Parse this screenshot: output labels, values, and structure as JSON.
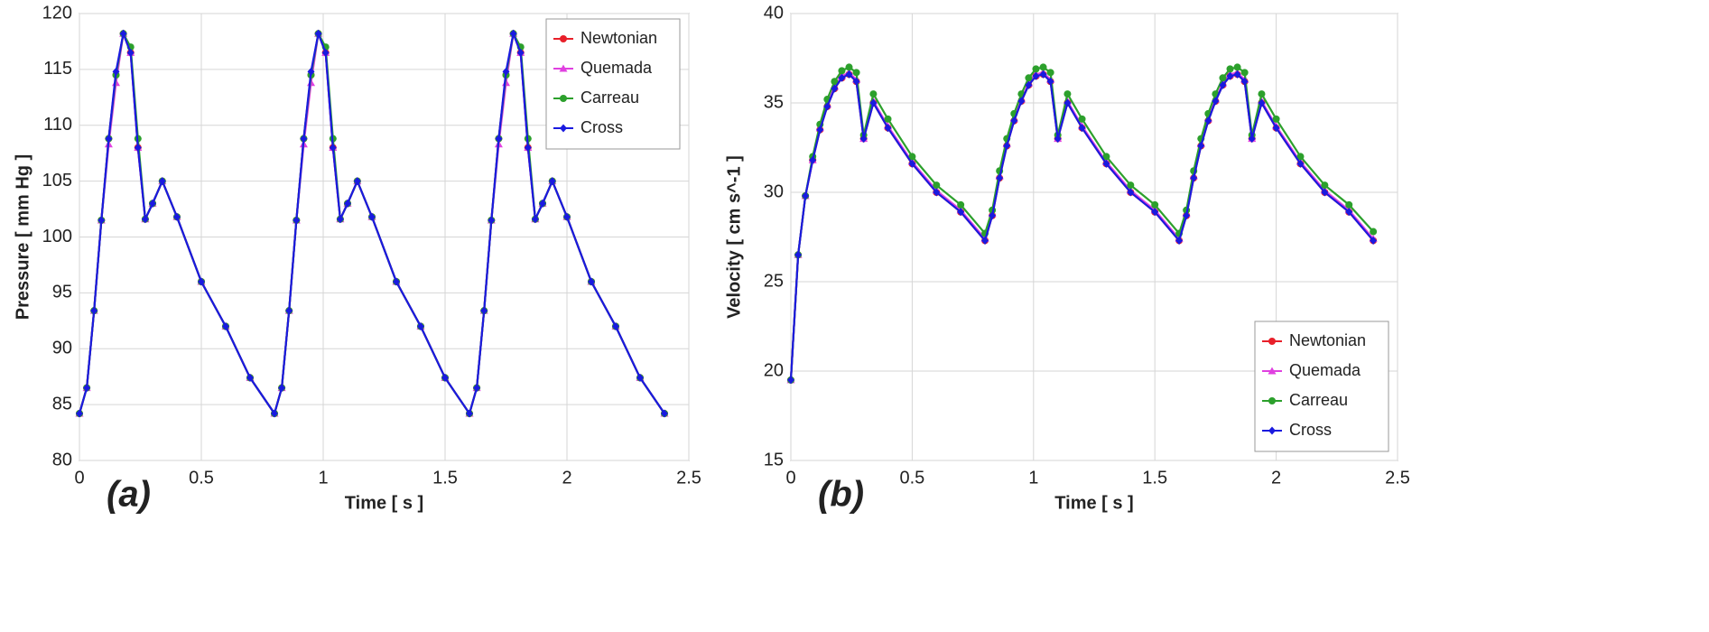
{
  "chart_data": [
    {
      "type": "line",
      "panel_label": "(a)",
      "xlabel": "Time [ s ]",
      "ylabel": "Pressure [ mm Hg ]",
      "xlim": [
        0,
        2.5
      ],
      "xticks": [
        0,
        0.5,
        1,
        1.5,
        2,
        2.5
      ],
      "ylim": [
        80,
        120
      ],
      "yticks": [
        80,
        85,
        90,
        95,
        100,
        105,
        110,
        115,
        120
      ],
      "grid": true,
      "legend": "upper right",
      "x": [
        0,
        0.03,
        0.06,
        0.09,
        0.12,
        0.15,
        0.18,
        0.21,
        0.24,
        0.27,
        0.3,
        0.34,
        0.4,
        0.5,
        0.6,
        0.7,
        0.8,
        0.83,
        0.86,
        0.89,
        0.92,
        0.95,
        0.98,
        1.01,
        1.04,
        1.07,
        1.1,
        1.14,
        1.2,
        1.3,
        1.4,
        1.5,
        1.6,
        1.63,
        1.66,
        1.69,
        1.72,
        1.75,
        1.78,
        1.81,
        1.84,
        1.87,
        1.9,
        1.94,
        2,
        2.1,
        2.2,
        2.3,
        2.4
      ],
      "series": [
        {
          "name": "Newtonian",
          "color": "#e8202a",
          "marker": "circle",
          "values": [
            84.2,
            86.5,
            93.4,
            101.5,
            108.8,
            114.5,
            118.2,
            116.5,
            108,
            101.6,
            103,
            105,
            101.8,
            96,
            92,
            87.4,
            84.2,
            86.5,
            93.4,
            101.5,
            108.8,
            114.5,
            118.2,
            116.5,
            108,
            101.6,
            103,
            105,
            101.8,
            96,
            92,
            87.4,
            84.2,
            86.5,
            93.4,
            101.5,
            108.8,
            114.5,
            118.2,
            116.5,
            108,
            101.6,
            103,
            105,
            101.8,
            96,
            92,
            87.4,
            84.2
          ]
        },
        {
          "name": "Quemada",
          "color": "#e040e0",
          "marker": "triangle",
          "values": [
            84.2,
            86.5,
            93.4,
            101.5,
            108.3,
            113.8,
            118.2,
            116.5,
            108,
            101.6,
            103,
            105,
            101.8,
            96,
            92,
            87.4,
            84.2,
            86.5,
            93.4,
            101.5,
            108.3,
            113.8,
            118.2,
            116.5,
            108,
            101.6,
            103,
            105,
            101.8,
            96,
            92,
            87.4,
            84.2,
            86.5,
            93.4,
            101.5,
            108.3,
            113.8,
            118.2,
            116.5,
            108,
            101.6,
            103,
            105,
            101.8,
            96,
            92,
            87.4,
            84.2
          ]
        },
        {
          "name": "Carreau",
          "color": "#2ca02c",
          "marker": "circle",
          "values": [
            84.2,
            86.5,
            93.4,
            101.5,
            108.8,
            114.5,
            118.2,
            117,
            108.8,
            101.6,
            103,
            105,
            101.8,
            96,
            92,
            87.4,
            84.2,
            86.5,
            93.4,
            101.5,
            108.8,
            114.5,
            118.2,
            117,
            108.8,
            101.6,
            103,
            105,
            101.8,
            96,
            92,
            87.4,
            84.2,
            86.5,
            93.4,
            101.5,
            108.8,
            114.5,
            118.2,
            117,
            108.8,
            101.6,
            103,
            105,
            101.8,
            96,
            92,
            87.4,
            84.2
          ]
        },
        {
          "name": "Cross",
          "color": "#1a1adf",
          "marker": "diamond",
          "values": [
            84.2,
            86.5,
            93.4,
            101.5,
            108.8,
            114.8,
            118.2,
            116.5,
            108,
            101.6,
            103,
            105,
            101.8,
            96,
            92,
            87.4,
            84.2,
            86.5,
            93.4,
            101.5,
            108.8,
            114.8,
            118.2,
            116.5,
            108,
            101.6,
            103,
            105,
            101.8,
            96,
            92,
            87.4,
            84.2,
            86.5,
            93.4,
            101.5,
            108.8,
            114.8,
            118.2,
            116.5,
            108,
            101.6,
            103,
            105,
            101.8,
            96,
            92,
            87.4,
            84.2
          ]
        }
      ]
    },
    {
      "type": "line",
      "panel_label": "(b)",
      "xlabel": "Time [ s ]",
      "ylabel": "Velocity [ cm s^-1 ]",
      "xlim": [
        0,
        2.5
      ],
      "xticks": [
        0,
        0.5,
        1,
        1.5,
        2,
        2.5
      ],
      "ylim": [
        15,
        40
      ],
      "yticks": [
        15,
        20,
        25,
        30,
        35,
        40
      ],
      "grid": true,
      "legend": "lower right",
      "x": [
        0,
        0.03,
        0.06,
        0.09,
        0.12,
        0.15,
        0.18,
        0.21,
        0.24,
        0.27,
        0.3,
        0.34,
        0.4,
        0.5,
        0.6,
        0.7,
        0.8,
        0.83,
        0.86,
        0.89,
        0.92,
        0.95,
        0.98,
        1.01,
        1.04,
        1.07,
        1.1,
        1.14,
        1.2,
        1.3,
        1.4,
        1.5,
        1.6,
        1.63,
        1.66,
        1.69,
        1.72,
        1.75,
        1.78,
        1.81,
        1.84,
        1.87,
        1.9,
        1.94,
        2,
        2.1,
        2.2,
        2.3,
        2.4
      ],
      "series": [
        {
          "name": "Newtonian",
          "color": "#e8202a",
          "marker": "circle",
          "values": [
            19.5,
            26.5,
            29.8,
            31.8,
            33.5,
            34.8,
            35.8,
            36.4,
            36.6,
            36.2,
            33,
            35,
            33.6,
            31.6,
            30,
            28.9,
            27.3,
            28.7,
            30.8,
            32.6,
            34,
            35.1,
            36,
            36.5,
            36.6,
            36.2,
            33,
            35,
            33.6,
            31.6,
            30,
            28.9,
            27.3,
            28.7,
            30.8,
            32.6,
            34,
            35.1,
            36,
            36.5,
            36.6,
            36.2,
            33,
            35,
            33.6,
            31.6,
            30,
            28.9,
            27.3
          ]
        },
        {
          "name": "Quemada",
          "color": "#e040e0",
          "marker": "triangle",
          "values": [
            19.5,
            26.5,
            29.8,
            31.8,
            33.6,
            34.9,
            35.9,
            36.5,
            36.7,
            36.3,
            33,
            35.1,
            33.7,
            31.7,
            30.1,
            29,
            27.4,
            28.8,
            30.9,
            32.7,
            34.1,
            35.2,
            36.1,
            36.6,
            36.7,
            36.3,
            33,
            35.1,
            33.7,
            31.7,
            30.1,
            29,
            27.4,
            28.8,
            30.9,
            32.7,
            34.1,
            35.2,
            36.1,
            36.6,
            36.7,
            36.3,
            33,
            35.1,
            33.7,
            31.7,
            30.1,
            29,
            27.4
          ]
        },
        {
          "name": "Carreau",
          "color": "#2ca02c",
          "marker": "circle",
          "values": [
            19.5,
            26.5,
            29.8,
            32,
            33.8,
            35.2,
            36.2,
            36.8,
            37,
            36.7,
            33.2,
            35.5,
            34.1,
            32,
            30.4,
            29.3,
            27.7,
            29,
            31.2,
            33,
            34.4,
            35.5,
            36.4,
            36.9,
            37,
            36.7,
            33.2,
            35.5,
            34.1,
            32,
            30.4,
            29.3,
            27.7,
            29,
            31.2,
            33,
            34.4,
            35.5,
            36.4,
            36.9,
            37,
            36.7,
            33.2,
            35.5,
            34.1,
            32,
            30.4,
            29.3,
            27.8
          ]
        },
        {
          "name": "Cross",
          "color": "#1a1adf",
          "marker": "diamond",
          "values": [
            19.5,
            26.5,
            29.8,
            31.8,
            33.5,
            34.8,
            35.8,
            36.4,
            36.6,
            36.2,
            33,
            35,
            33.6,
            31.6,
            30,
            28.9,
            27.3,
            28.7,
            30.8,
            32.6,
            34,
            35.1,
            36,
            36.5,
            36.6,
            36.2,
            33,
            35,
            33.6,
            31.6,
            30,
            28.9,
            27.3,
            28.7,
            30.8,
            32.6,
            34,
            35.1,
            36,
            36.5,
            36.6,
            36.2,
            33,
            35,
            33.6,
            31.6,
            30,
            28.9,
            27.3
          ]
        }
      ]
    }
  ]
}
